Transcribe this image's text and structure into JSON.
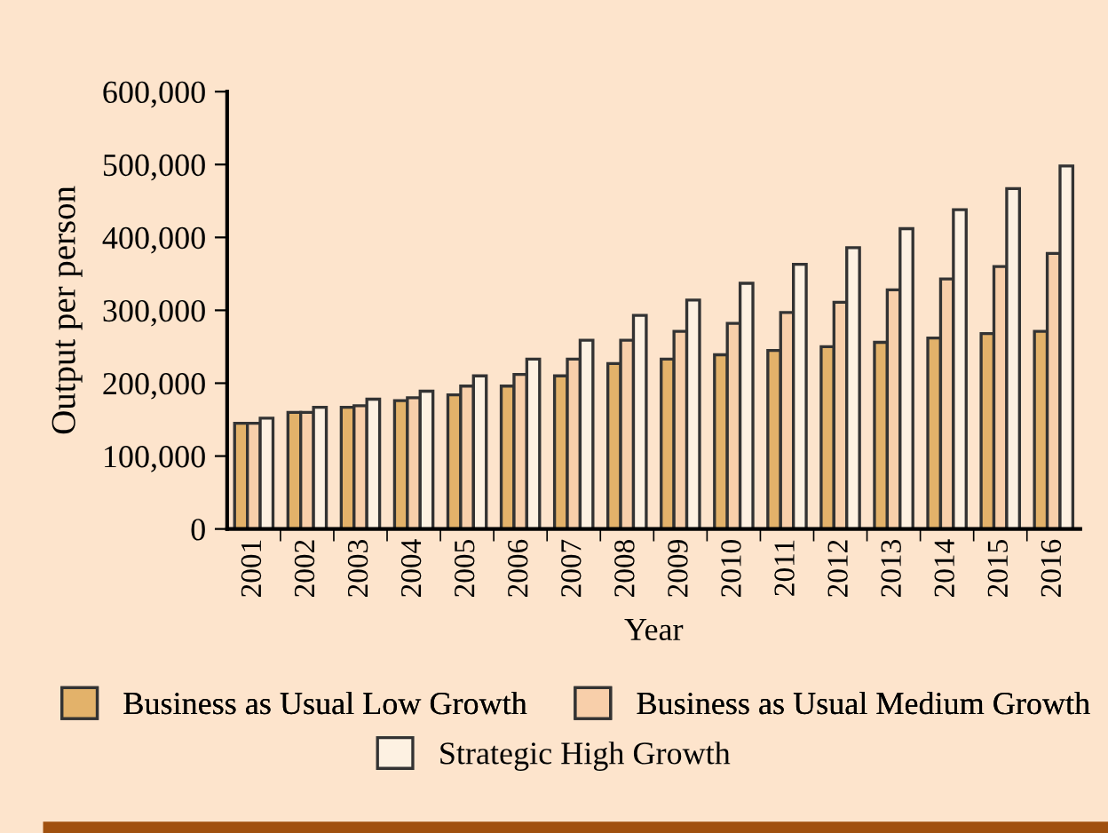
{
  "chart_data": {
    "type": "bar",
    "xlabel": "Year",
    "ylabel": "Output per person",
    "categories": [
      "2001",
      "2002",
      "2003",
      "2004",
      "2005",
      "2006",
      "2007",
      "2008",
      "2009",
      "2010",
      "2011",
      "2012",
      "2013",
      "2014",
      "2015",
      "2016"
    ],
    "series": [
      {
        "name": "Business as Usual Low Growth",
        "color": "#e3b26a",
        "values": [
          145000,
          160000,
          167000,
          176000,
          184000,
          196000,
          210000,
          227000,
          233000,
          239000,
          245000,
          250000,
          256000,
          262000,
          268000,
          271000
        ]
      },
      {
        "name": "Business as Usual Medium Growth",
        "color": "#f8cfaa",
        "values": [
          145000,
          160000,
          169000,
          180000,
          196000,
          212000,
          233000,
          259000,
          271000,
          282000,
          297000,
          311000,
          328000,
          343000,
          360000,
          378000
        ]
      },
      {
        "name": "Strategic High Growth",
        "color": "#fdf1e2",
        "values": [
          152000,
          167000,
          178000,
          189000,
          210000,
          233000,
          259000,
          293000,
          314000,
          337000,
          363000,
          386000,
          412000,
          438000,
          467000,
          498000
        ]
      }
    ],
    "ylim": [
      0,
      600000
    ],
    "yticks": [
      0,
      {
        "value": 100000,
        "label": "100,000"
      },
      {
        "value": 200000,
        "label": "200,000"
      },
      {
        "value": 300000,
        "label": "300,000"
      },
      {
        "value": 400000,
        "label": "400,000"
      },
      {
        "value": 500000,
        "label": "500,000"
      },
      {
        "value": 600000,
        "label": "600,000"
      }
    ],
    "grid": false,
    "legend": "bottom"
  }
}
